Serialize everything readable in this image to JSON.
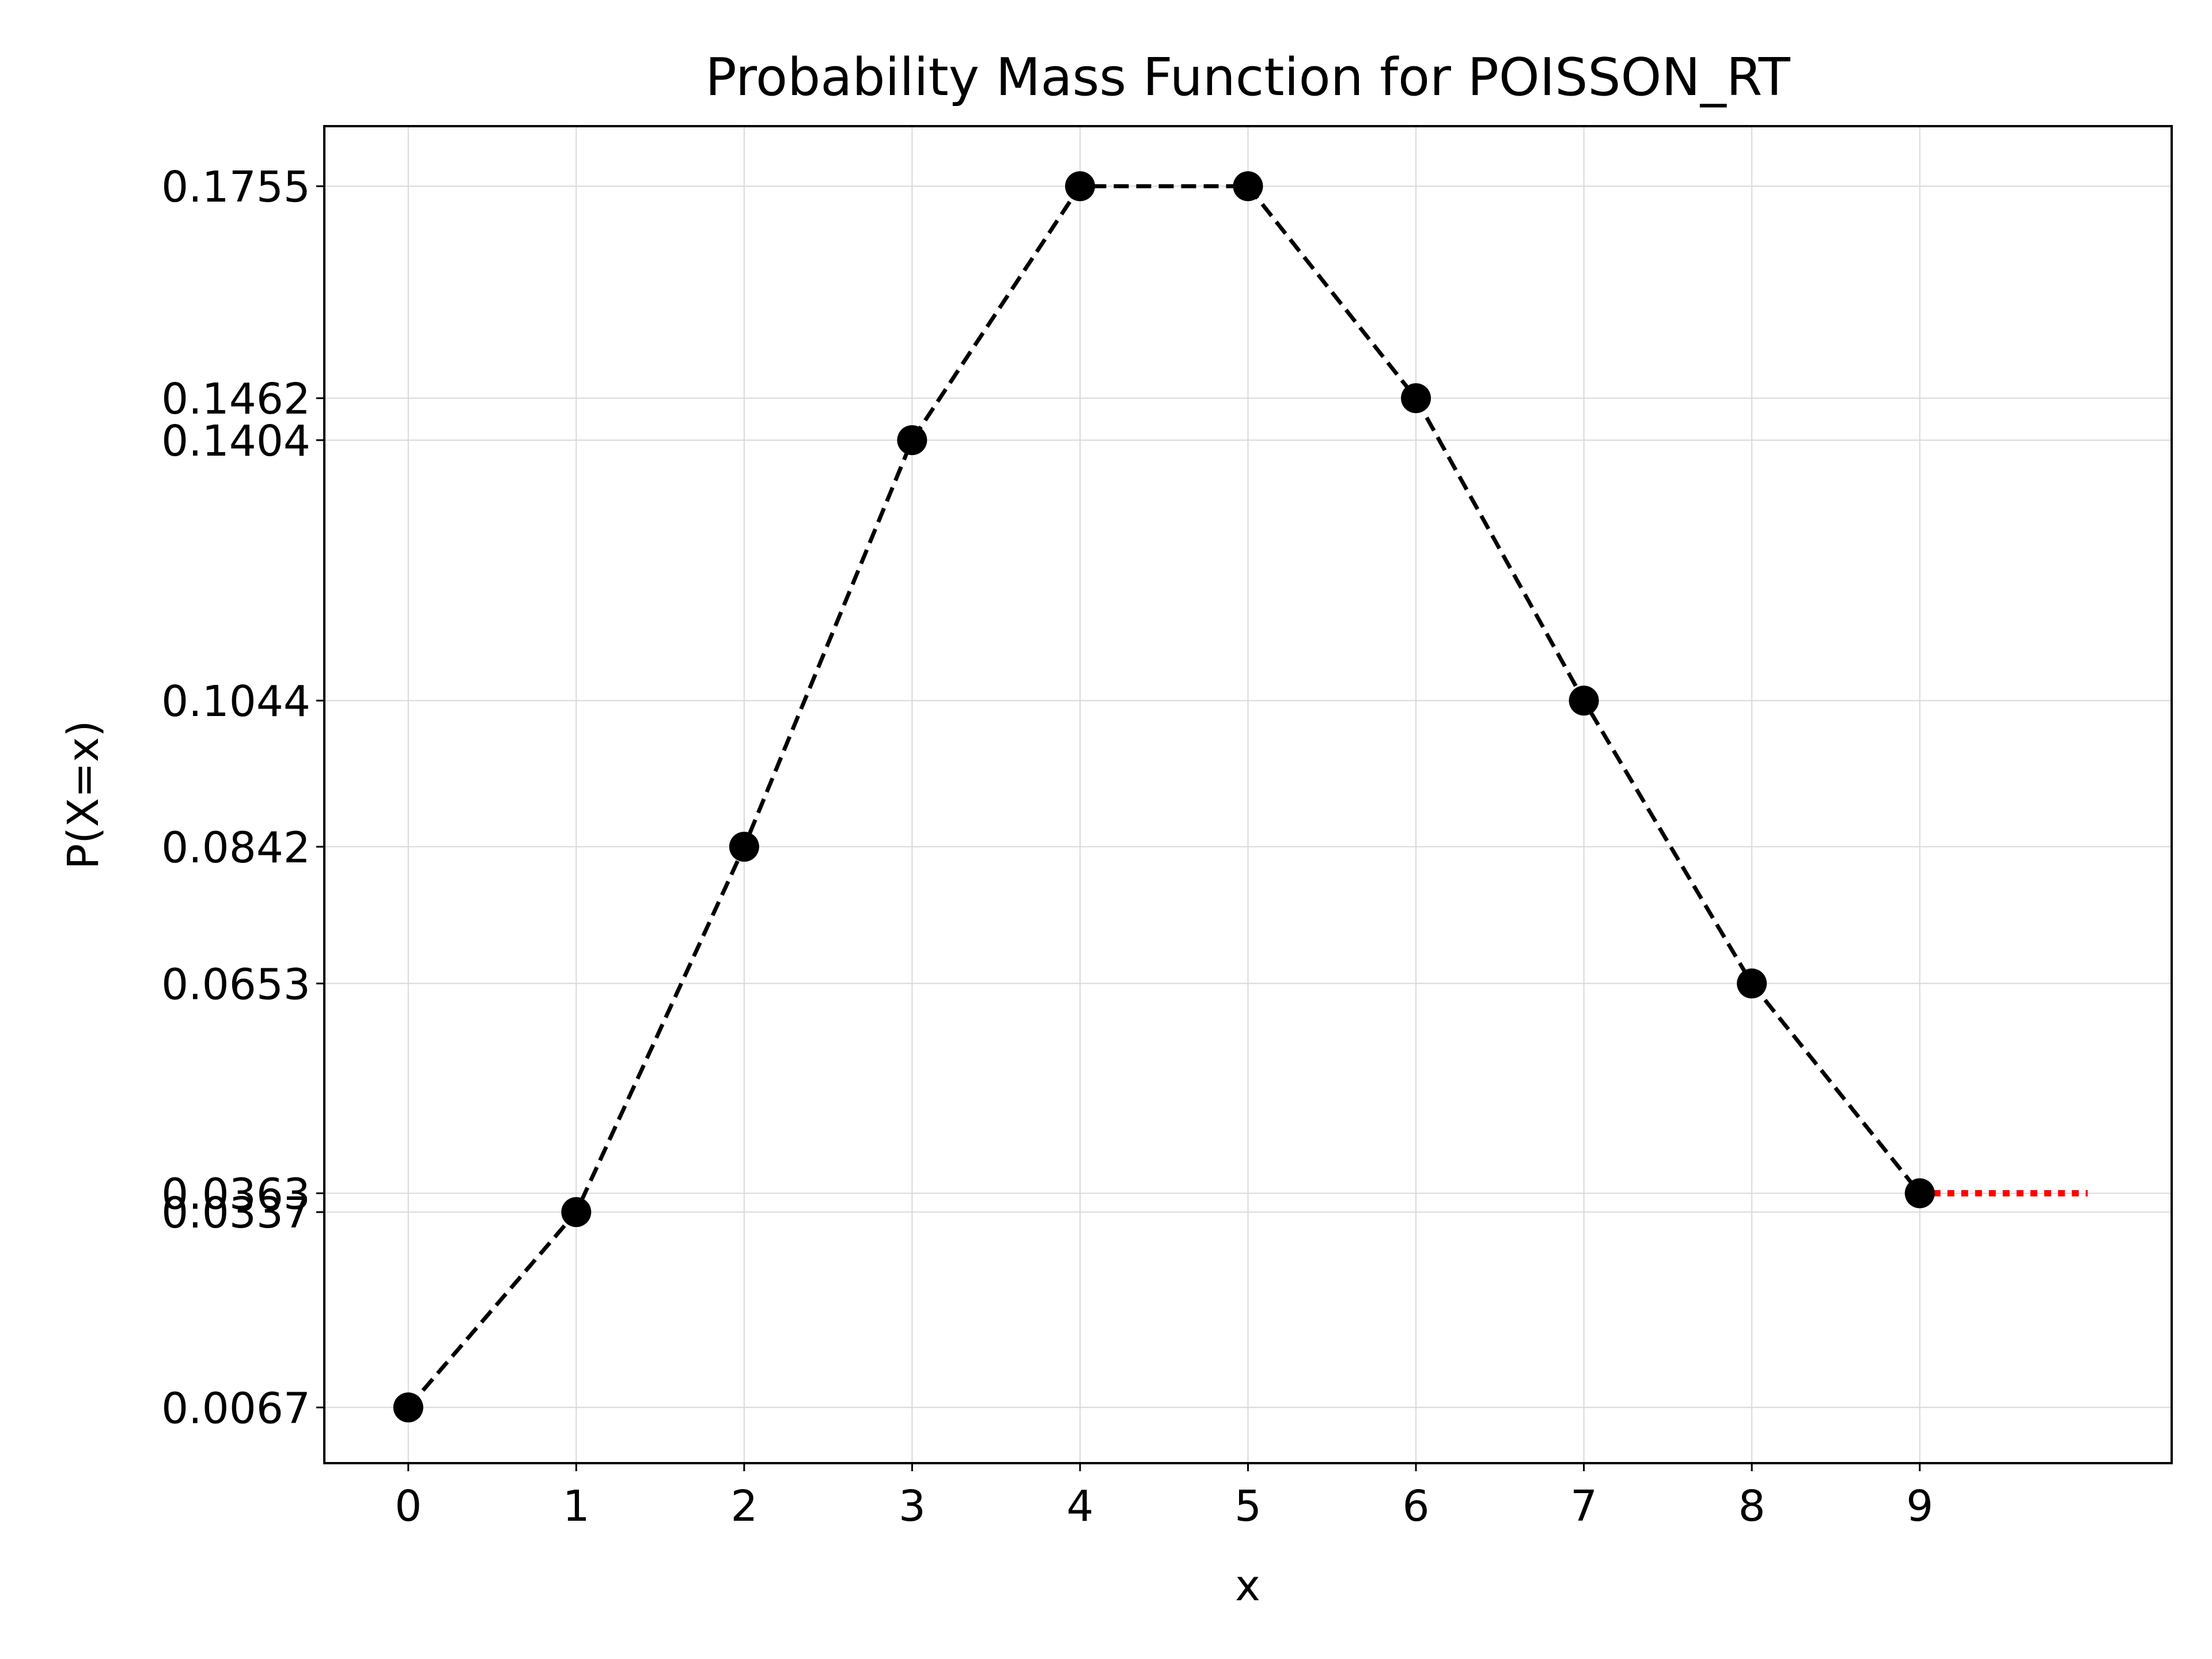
{
  "chart_data": {
    "type": "line",
    "title": "Probability Mass Function for POISSON_RT",
    "xlabel": "x",
    "ylabel": "P(X=x)",
    "x": [
      0,
      1,
      2,
      3,
      4,
      5,
      6,
      7,
      8,
      9
    ],
    "xticks": [
      "0",
      "1",
      "2",
      "3",
      "4",
      "5",
      "6",
      "7",
      "8",
      "9"
    ],
    "xlim": [
      -0.5,
      10.5
    ],
    "ylim": [
      -0.001,
      0.1838
    ],
    "yticks": [
      0.0067,
      0.0337,
      0.0363,
      0.0653,
      0.0842,
      0.1044,
      0.1404,
      0.1462,
      0.1755
    ],
    "ytick_labels": [
      "0.0067",
      "0.0337",
      "0.0363",
      "0.0653",
      "0.0842",
      "0.1044",
      "0.1404",
      "0.1462",
      "0.1755"
    ],
    "grid": true,
    "series": [
      {
        "values": [
          0.0067,
          0.0337,
          0.0842,
          0.1404,
          0.1755,
          0.1755,
          0.1462,
          0.1044,
          0.0653,
          0.0363
        ],
        "color": "#000000",
        "line_style": "dashed",
        "marker": "circle"
      }
    ],
    "tail": {
      "from_x": 9,
      "to_x": 10,
      "y": 0.0363,
      "color": "#ff0000",
      "line_style": "dotted"
    }
  }
}
